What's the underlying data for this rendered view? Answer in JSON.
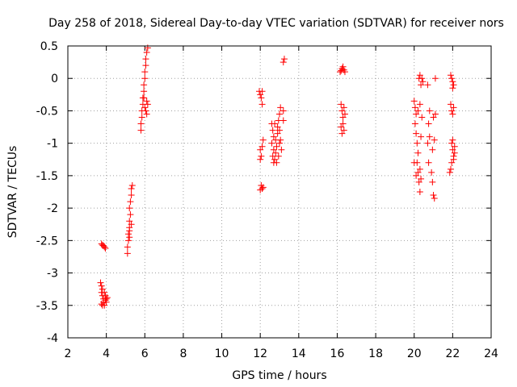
{
  "chart_data": {
    "type": "scatter",
    "title": "Day 258 of 2018, Sidereal Day-to-day VTEC variation (SDTVAR) for receiver nors",
    "xlabel": "GPS time / hours",
    "ylabel": "SDTVAR / TECUs",
    "xlim": [
      2,
      24
    ],
    "ylim": [
      -4,
      0.5
    ],
    "xticks": [
      2,
      4,
      6,
      8,
      10,
      12,
      14,
      16,
      18,
      20,
      22,
      24
    ],
    "yticks": [
      -4,
      -3.5,
      -3,
      -2.5,
      -2,
      -1.5,
      -1,
      -0.5,
      0,
      0.5
    ],
    "xtick_labels": [
      "2",
      "4",
      "6",
      "8",
      "10",
      "12",
      "14",
      "16",
      "18",
      "20",
      "22",
      "24"
    ],
    "ytick_labels": [
      "-4",
      "-3.5",
      "-3",
      "-2.5",
      "-2",
      "-1.5",
      "-1",
      "-0.5",
      "0",
      "0.5"
    ],
    "grid": true,
    "marker": "plus",
    "series": [
      {
        "name": "SDTVAR",
        "color": "#ff0000",
        "points": [
          [
            3.75,
            -2.55
          ],
          [
            3.8,
            -2.57
          ],
          [
            3.85,
            -2.58
          ],
          [
            3.9,
            -2.6
          ],
          [
            3.95,
            -2.62
          ],
          [
            3.7,
            -3.15
          ],
          [
            3.75,
            -3.2
          ],
          [
            3.8,
            -3.25
          ],
          [
            3.75,
            -3.3
          ],
          [
            3.8,
            -3.35
          ],
          [
            3.85,
            -3.4
          ],
          [
            3.9,
            -3.3
          ],
          [
            3.95,
            -3.35
          ],
          [
            4.0,
            -3.4
          ],
          [
            4.05,
            -3.38
          ],
          [
            3.8,
            -3.5
          ],
          [
            3.9,
            -3.5
          ],
          [
            4.0,
            -3.45
          ],
          [
            3.85,
            -3.45
          ],
          [
            3.95,
            -3.42
          ],
          [
            3.75,
            -3.48
          ],
          [
            5.1,
            -2.7
          ],
          [
            5.1,
            -2.6
          ],
          [
            5.15,
            -2.5
          ],
          [
            5.15,
            -2.4
          ],
          [
            5.2,
            -2.35
          ],
          [
            5.2,
            -2.3
          ],
          [
            5.2,
            -2.2
          ],
          [
            5.25,
            -2.1
          ],
          [
            5.2,
            -2.0
          ],
          [
            5.25,
            -1.9
          ],
          [
            5.3,
            -1.8
          ],
          [
            5.3,
            -1.7
          ],
          [
            5.35,
            -1.65
          ],
          [
            5.3,
            -2.25
          ],
          [
            5.2,
            -2.45
          ],
          [
            5.8,
            -0.8
          ],
          [
            5.8,
            -0.7
          ],
          [
            5.85,
            -0.6
          ],
          [
            5.85,
            -0.5
          ],
          [
            5.9,
            -0.4
          ],
          [
            5.9,
            -0.3
          ],
          [
            5.95,
            -0.2
          ],
          [
            5.95,
            -0.1
          ],
          [
            6.0,
            0.0
          ],
          [
            6.0,
            0.1
          ],
          [
            6.05,
            0.2
          ],
          [
            6.05,
            0.3
          ],
          [
            6.1,
            0.4
          ],
          [
            6.15,
            0.47
          ],
          [
            6.0,
            -0.45
          ],
          [
            6.05,
            -0.5
          ],
          [
            6.1,
            -0.55
          ],
          [
            6.15,
            -0.4
          ],
          [
            6.1,
            -0.35
          ],
          [
            5.95,
            -0.3
          ],
          [
            11.95,
            -0.2
          ],
          [
            12.0,
            -0.25
          ],
          [
            12.05,
            -0.3
          ],
          [
            12.1,
            -0.4
          ],
          [
            12.1,
            -0.2
          ],
          [
            12.0,
            -1.1
          ],
          [
            12.05,
            -1.2
          ],
          [
            12.0,
            -1.25
          ],
          [
            12.1,
            -1.05
          ],
          [
            12.15,
            -0.95
          ],
          [
            12.05,
            -1.65
          ],
          [
            12.1,
            -1.7
          ],
          [
            12.0,
            -1.72
          ],
          [
            12.15,
            -1.68
          ],
          [
            12.6,
            -0.7
          ],
          [
            12.65,
            -0.8
          ],
          [
            12.7,
            -0.9
          ],
          [
            12.6,
            -1.0
          ],
          [
            12.7,
            -1.1
          ],
          [
            12.65,
            -1.2
          ],
          [
            12.7,
            -1.3
          ],
          [
            12.75,
            -1.25
          ],
          [
            12.8,
            -1.15
          ],
          [
            12.85,
            -1.05
          ],
          [
            12.8,
            -0.95
          ],
          [
            12.9,
            -0.85
          ],
          [
            12.9,
            -0.75
          ],
          [
            12.95,
            -0.65
          ],
          [
            13.0,
            -0.55
          ],
          [
            13.05,
            -0.45
          ],
          [
            13.0,
            -0.8
          ],
          [
            13.05,
            -0.95
          ],
          [
            13.1,
            -1.1
          ],
          [
            12.95,
            -1.2
          ],
          [
            12.75,
            -0.7
          ],
          [
            12.85,
            -1.3
          ],
          [
            13.0,
            -1.0
          ],
          [
            13.2,
            -0.65
          ],
          [
            13.2,
            0.25
          ],
          [
            13.25,
            0.3
          ],
          [
            13.2,
            -0.5
          ],
          [
            16.15,
            0.1
          ],
          [
            16.2,
            0.12
          ],
          [
            16.25,
            0.15
          ],
          [
            16.3,
            0.18
          ],
          [
            16.35,
            0.13
          ],
          [
            16.4,
            0.1
          ],
          [
            16.2,
            -0.4
          ],
          [
            16.25,
            -0.5
          ],
          [
            16.3,
            -0.6
          ],
          [
            16.3,
            -0.7
          ],
          [
            16.35,
            -0.8
          ],
          [
            16.25,
            -0.85
          ],
          [
            16.2,
            -0.75
          ],
          [
            16.35,
            -0.45
          ],
          [
            16.4,
            -0.55
          ],
          [
            20.0,
            -0.35
          ],
          [
            20.05,
            -0.45
          ],
          [
            20.1,
            -0.55
          ],
          [
            20.05,
            -0.7
          ],
          [
            20.1,
            -0.85
          ],
          [
            20.15,
            -1.0
          ],
          [
            20.2,
            -1.15
          ],
          [
            20.15,
            -1.3
          ],
          [
            20.2,
            -1.45
          ],
          [
            20.25,
            -1.6
          ],
          [
            20.3,
            -1.75
          ],
          [
            20.35,
            -1.55
          ],
          [
            20.3,
            -1.4
          ],
          [
            20.35,
            -0.9
          ],
          [
            20.4,
            -0.6
          ],
          [
            20.3,
            -0.4
          ],
          [
            20.25,
            0.0
          ],
          [
            20.3,
            0.05
          ],
          [
            20.4,
            0.0
          ],
          [
            20.45,
            -0.05
          ],
          [
            20.35,
            -0.1
          ],
          [
            20.2,
            -0.5
          ],
          [
            20.0,
            -1.3
          ],
          [
            20.1,
            -1.5
          ],
          [
            20.7,
            -0.1
          ],
          [
            20.8,
            -0.5
          ],
          [
            20.75,
            -0.7
          ],
          [
            20.8,
            -0.9
          ],
          [
            20.7,
            -1.0
          ],
          [
            20.75,
            -1.3
          ],
          [
            20.9,
            -1.45
          ],
          [
            20.95,
            -1.6
          ],
          [
            21.0,
            -1.8
          ],
          [
            21.05,
            -1.85
          ],
          [
            21.0,
            -0.6
          ],
          [
            21.1,
            -0.55
          ],
          [
            21.05,
            -0.95
          ],
          [
            21.1,
            0.0
          ],
          [
            20.95,
            -1.1
          ],
          [
            21.9,
            0.05
          ],
          [
            21.95,
            0.0
          ],
          [
            22.0,
            -0.05
          ],
          [
            22.05,
            -0.1
          ],
          [
            22.0,
            -0.15
          ],
          [
            21.9,
            -0.4
          ],
          [
            21.95,
            -0.5
          ],
          [
            22.0,
            -0.55
          ],
          [
            22.05,
            -0.45
          ],
          [
            21.95,
            -1.0
          ],
          [
            22.0,
            -1.1
          ],
          [
            22.05,
            -1.2
          ],
          [
            22.1,
            -1.05
          ],
          [
            22.0,
            -0.95
          ],
          [
            21.9,
            -1.4
          ],
          [
            21.95,
            -1.3
          ],
          [
            22.05,
            -1.25
          ],
          [
            22.1,
            -1.15
          ],
          [
            21.85,
            -1.45
          ]
        ]
      }
    ]
  }
}
